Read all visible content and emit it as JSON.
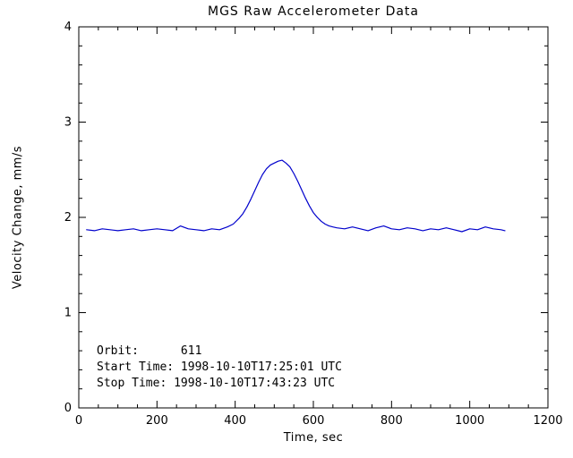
{
  "chart_data": {
    "type": "line",
    "title": "MGS Raw Accelerometer Data",
    "xlabel": "Time, sec",
    "ylabel": "Velocity Change, mm/s",
    "xlim": [
      0,
      1200
    ],
    "ylim": [
      0,
      4
    ],
    "x_ticks": [
      0,
      200,
      400,
      600,
      800,
      1000,
      1200
    ],
    "y_ticks": [
      0,
      1,
      2,
      3,
      4
    ],
    "x_minor_step": 50,
    "y_minor_step": 0.2,
    "grid": false,
    "legend": "none",
    "line_color": "#0000CC",
    "axis_color": "#000000",
    "background_color": "#ffffff",
    "annotations": [
      "Orbit:      611",
      "Start Time: 1998-10-10T17:25:01 UTC",
      "Stop Time: 1998-10-10T17:43:23 UTC"
    ],
    "series": [
      {
        "name": "velocity-change",
        "x": [
          20,
          40,
          60,
          80,
          100,
          120,
          140,
          160,
          180,
          200,
          220,
          240,
          260,
          280,
          300,
          320,
          340,
          360,
          380,
          395,
          410,
          420,
          430,
          440,
          450,
          460,
          470,
          480,
          490,
          500,
          510,
          520,
          530,
          540,
          550,
          560,
          570,
          580,
          590,
          600,
          610,
          620,
          630,
          640,
          650,
          660,
          680,
          700,
          720,
          740,
          760,
          780,
          800,
          820,
          840,
          860,
          880,
          900,
          920,
          940,
          960,
          980,
          1000,
          1020,
          1040,
          1060,
          1080,
          1090
        ],
        "y": [
          1.87,
          1.86,
          1.88,
          1.87,
          1.86,
          1.87,
          1.88,
          1.86,
          1.87,
          1.88,
          1.87,
          1.86,
          1.91,
          1.88,
          1.87,
          1.86,
          1.88,
          1.87,
          1.9,
          1.93,
          1.99,
          2.04,
          2.11,
          2.19,
          2.28,
          2.37,
          2.45,
          2.51,
          2.55,
          2.57,
          2.59,
          2.6,
          2.57,
          2.53,
          2.46,
          2.38,
          2.29,
          2.2,
          2.12,
          2.05,
          2.0,
          1.96,
          1.93,
          1.91,
          1.9,
          1.89,
          1.88,
          1.9,
          1.88,
          1.86,
          1.89,
          1.91,
          1.88,
          1.87,
          1.89,
          1.88,
          1.86,
          1.88,
          1.87,
          1.89,
          1.87,
          1.85,
          1.88,
          1.87,
          1.9,
          1.88,
          1.87,
          1.86
        ]
      }
    ]
  }
}
